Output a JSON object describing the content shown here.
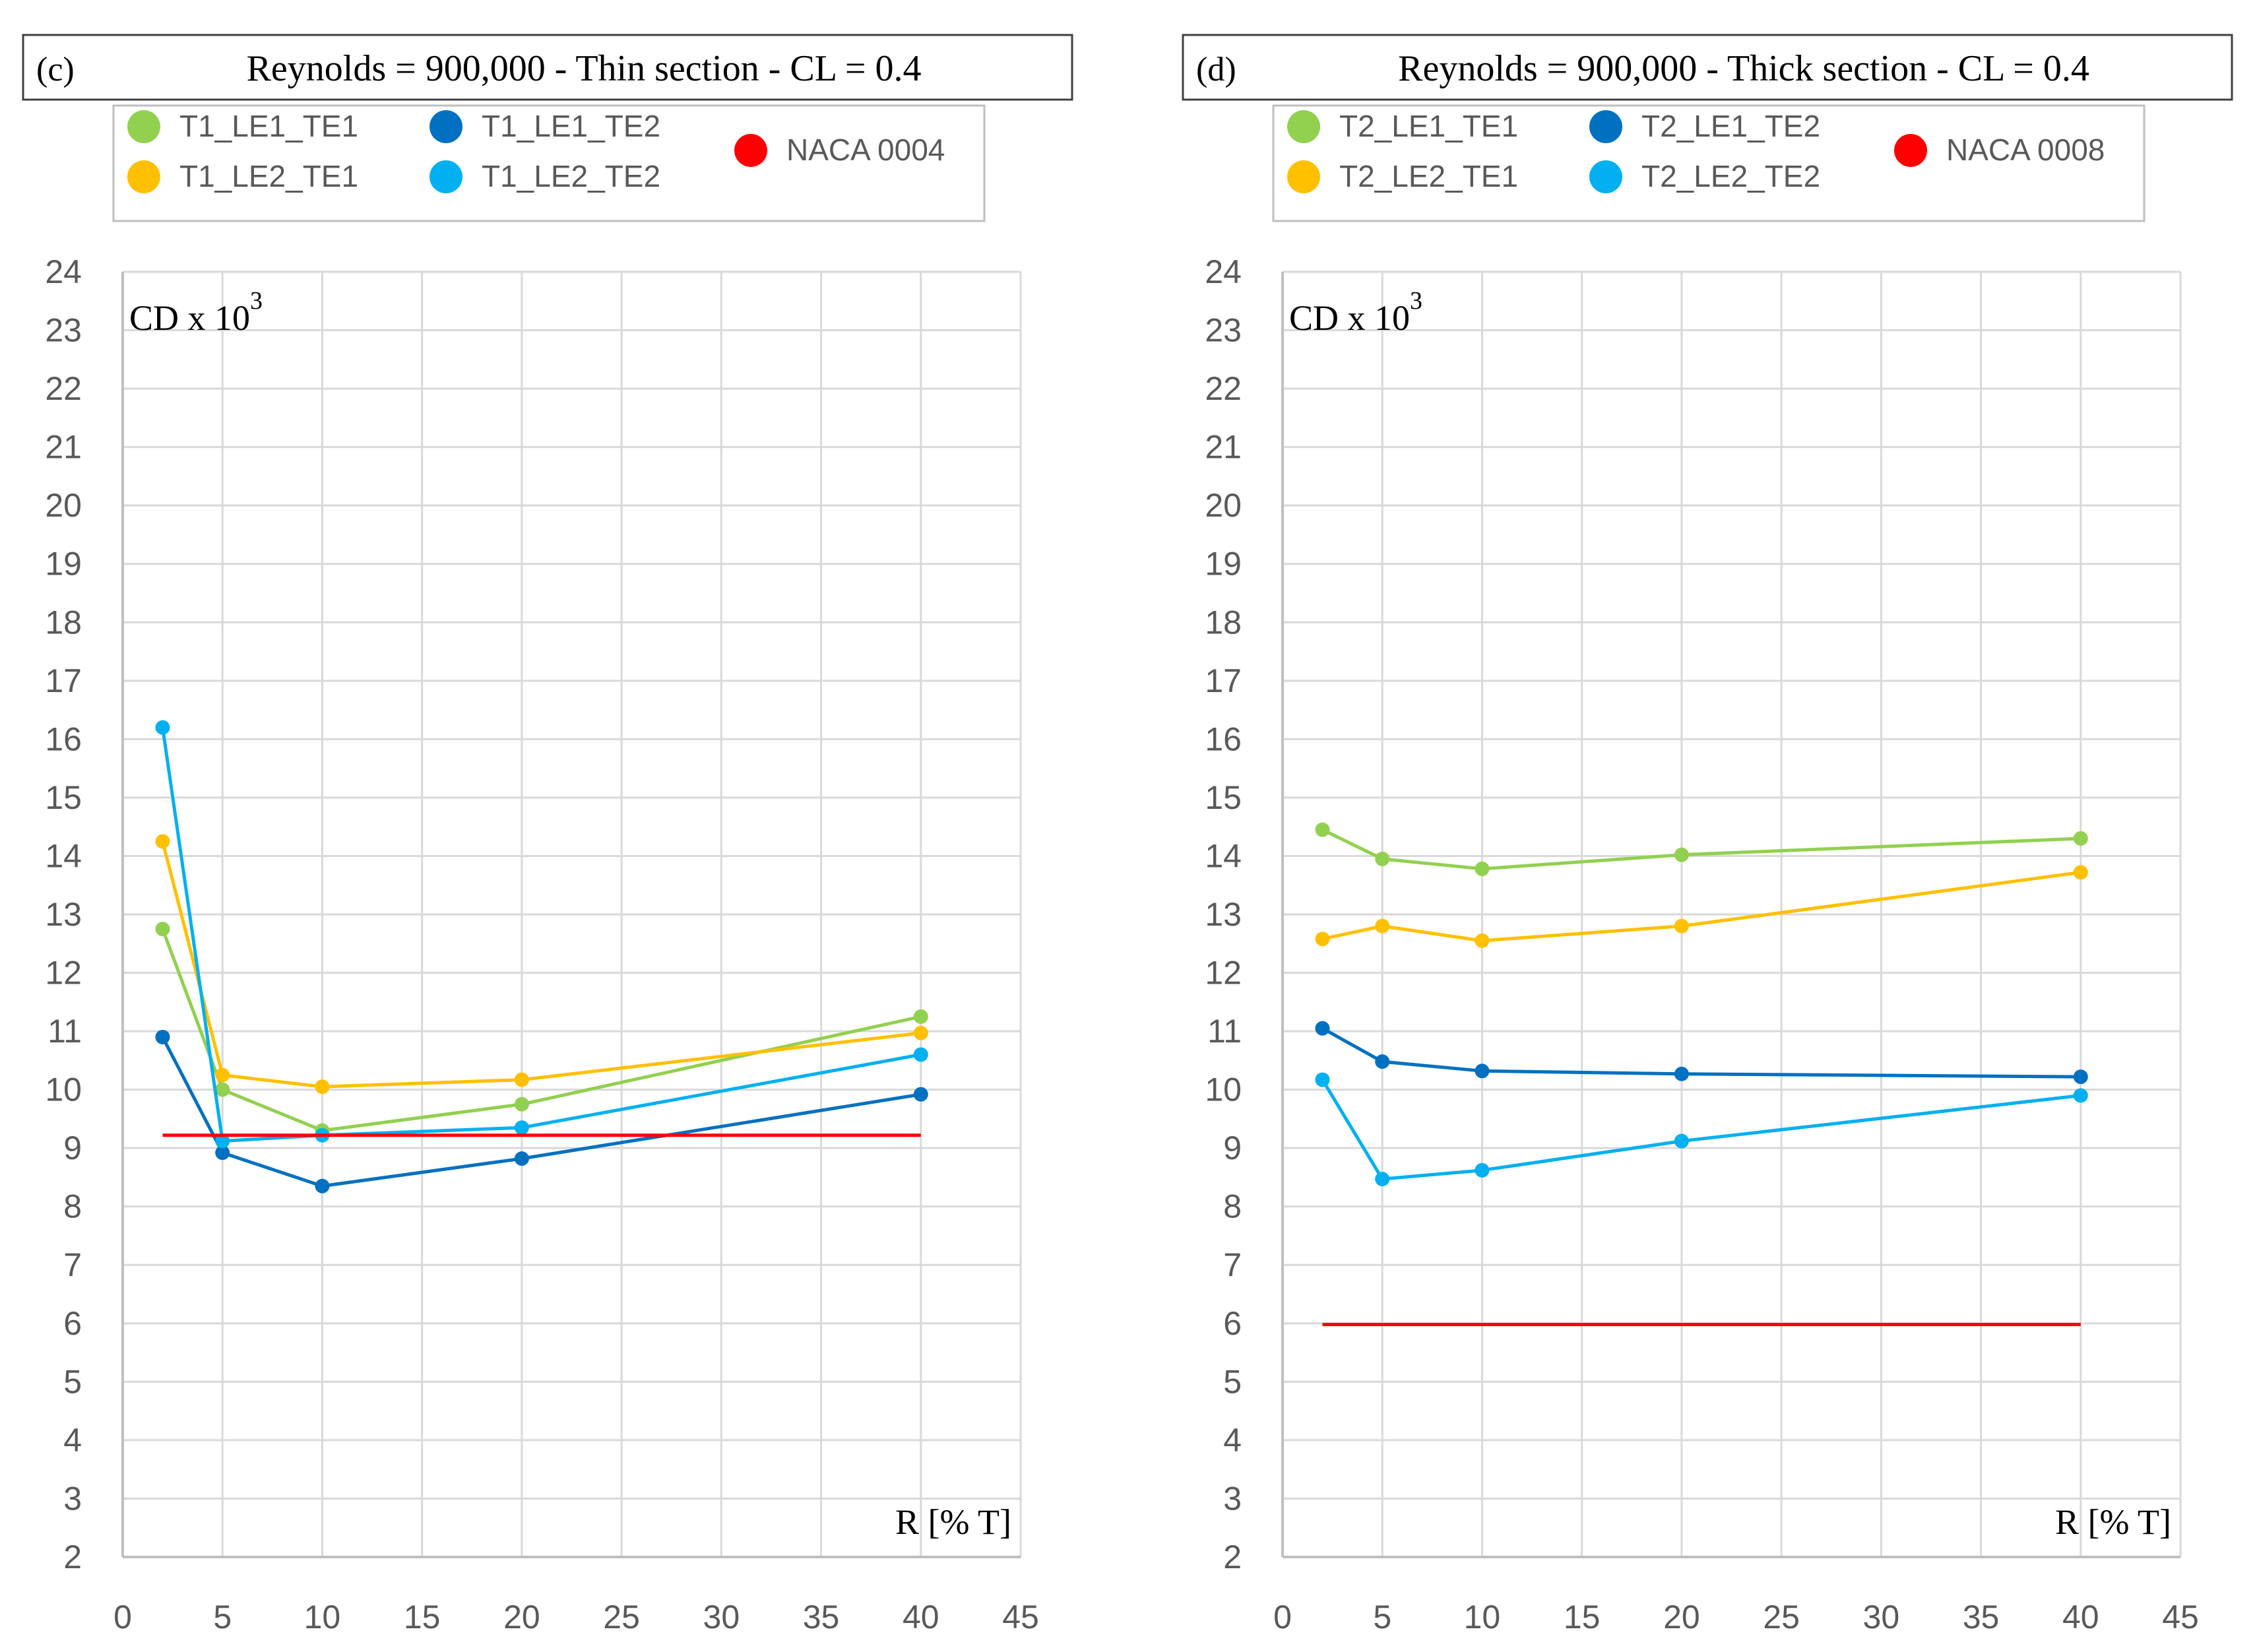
{
  "figure": {
    "background": "#ffffff",
    "grid_color": "#d9d9d9",
    "axis_color": "#bfbfbf",
    "text_color": "#595959"
  },
  "chart_data": [
    {
      "type": "line",
      "panel_label": "(c)",
      "title": "Reynolds = 900,000 - Thin section - CL = 0.4",
      "ylabel": "CD x 10",
      "ylabel_exponent": "3",
      "xlabel": "R [% T]",
      "xlim": [
        0,
        45
      ],
      "ylim": [
        2,
        24
      ],
      "xticks": [
        0,
        5,
        10,
        15,
        20,
        25,
        30,
        35,
        40,
        45
      ],
      "yticks": [
        2,
        3,
        4,
        5,
        6,
        7,
        8,
        9,
        10,
        11,
        12,
        13,
        14,
        15,
        16,
        17,
        18,
        19,
        20,
        21,
        22,
        23,
        24
      ],
      "grid": true,
      "legend_position": "top",
      "series": [
        {
          "name": "T1_LE1_TE1",
          "color": "#92d050",
          "x": [
            2,
            5,
            10,
            20,
            40
          ],
          "values": [
            12.75,
            10.0,
            9.3,
            9.75,
            11.25
          ],
          "markers": true
        },
        {
          "name": "T1_LE2_TE1",
          "color": "#ffc000",
          "x": [
            2,
            5,
            10,
            20,
            40
          ],
          "values": [
            14.25,
            10.25,
            10.05,
            10.17,
            10.97
          ],
          "markers": true
        },
        {
          "name": "T1_LE1_TE2",
          "color": "#0070c0",
          "x": [
            2,
            5,
            10,
            20,
            40
          ],
          "values": [
            10.9,
            8.92,
            8.35,
            8.82,
            9.92
          ],
          "markers": true
        },
        {
          "name": "T1_LE2_TE2",
          "color": "#00b0f0",
          "x": [
            2,
            5,
            10,
            20,
            40
          ],
          "values": [
            16.2,
            9.12,
            9.22,
            9.35,
            10.6
          ],
          "markers": true
        },
        {
          "name": "NACA 0004",
          "color": "#ff0000",
          "x": [
            2,
            40
          ],
          "values": [
            9.22,
            9.22
          ],
          "markers": false
        }
      ]
    },
    {
      "type": "line",
      "panel_label": "(d)",
      "title": "Reynolds = 900,000 - Thick section - CL = 0.4",
      "ylabel": "CD x 10",
      "ylabel_exponent": "3",
      "xlabel": "R [% T]",
      "xlim": [
        0,
        45
      ],
      "ylim": [
        2,
        24
      ],
      "xticks": [
        0,
        5,
        10,
        15,
        20,
        25,
        30,
        35,
        40,
        45
      ],
      "yticks": [
        2,
        3,
        4,
        5,
        6,
        7,
        8,
        9,
        10,
        11,
        12,
        13,
        14,
        15,
        16,
        17,
        18,
        19,
        20,
        21,
        22,
        23,
        24
      ],
      "grid": true,
      "legend_position": "top",
      "series": [
        {
          "name": "T2_LE1_TE1",
          "color": "#92d050",
          "x": [
            2,
            5,
            10,
            20,
            40
          ],
          "values": [
            14.45,
            13.95,
            13.78,
            14.02,
            14.3
          ],
          "markers": true
        },
        {
          "name": "T2_LE2_TE1",
          "color": "#ffc000",
          "x": [
            2,
            5,
            10,
            20,
            40
          ],
          "values": [
            12.58,
            12.8,
            12.55,
            12.8,
            13.72
          ],
          "markers": true
        },
        {
          "name": "T2_LE1_TE2",
          "color": "#0070c0",
          "x": [
            2,
            5,
            10,
            20,
            40
          ],
          "values": [
            11.05,
            10.48,
            10.32,
            10.27,
            10.22
          ],
          "markers": true
        },
        {
          "name": "T2_LE2_TE2",
          "color": "#00b0f0",
          "x": [
            2,
            5,
            10,
            20,
            40
          ],
          "values": [
            10.17,
            8.47,
            8.62,
            9.12,
            9.9
          ],
          "markers": true
        },
        {
          "name": "NACA 0008",
          "color": "#ff0000",
          "x": [
            2,
            40
          ],
          "values": [
            5.98,
            5.98
          ],
          "markers": false
        }
      ]
    }
  ]
}
